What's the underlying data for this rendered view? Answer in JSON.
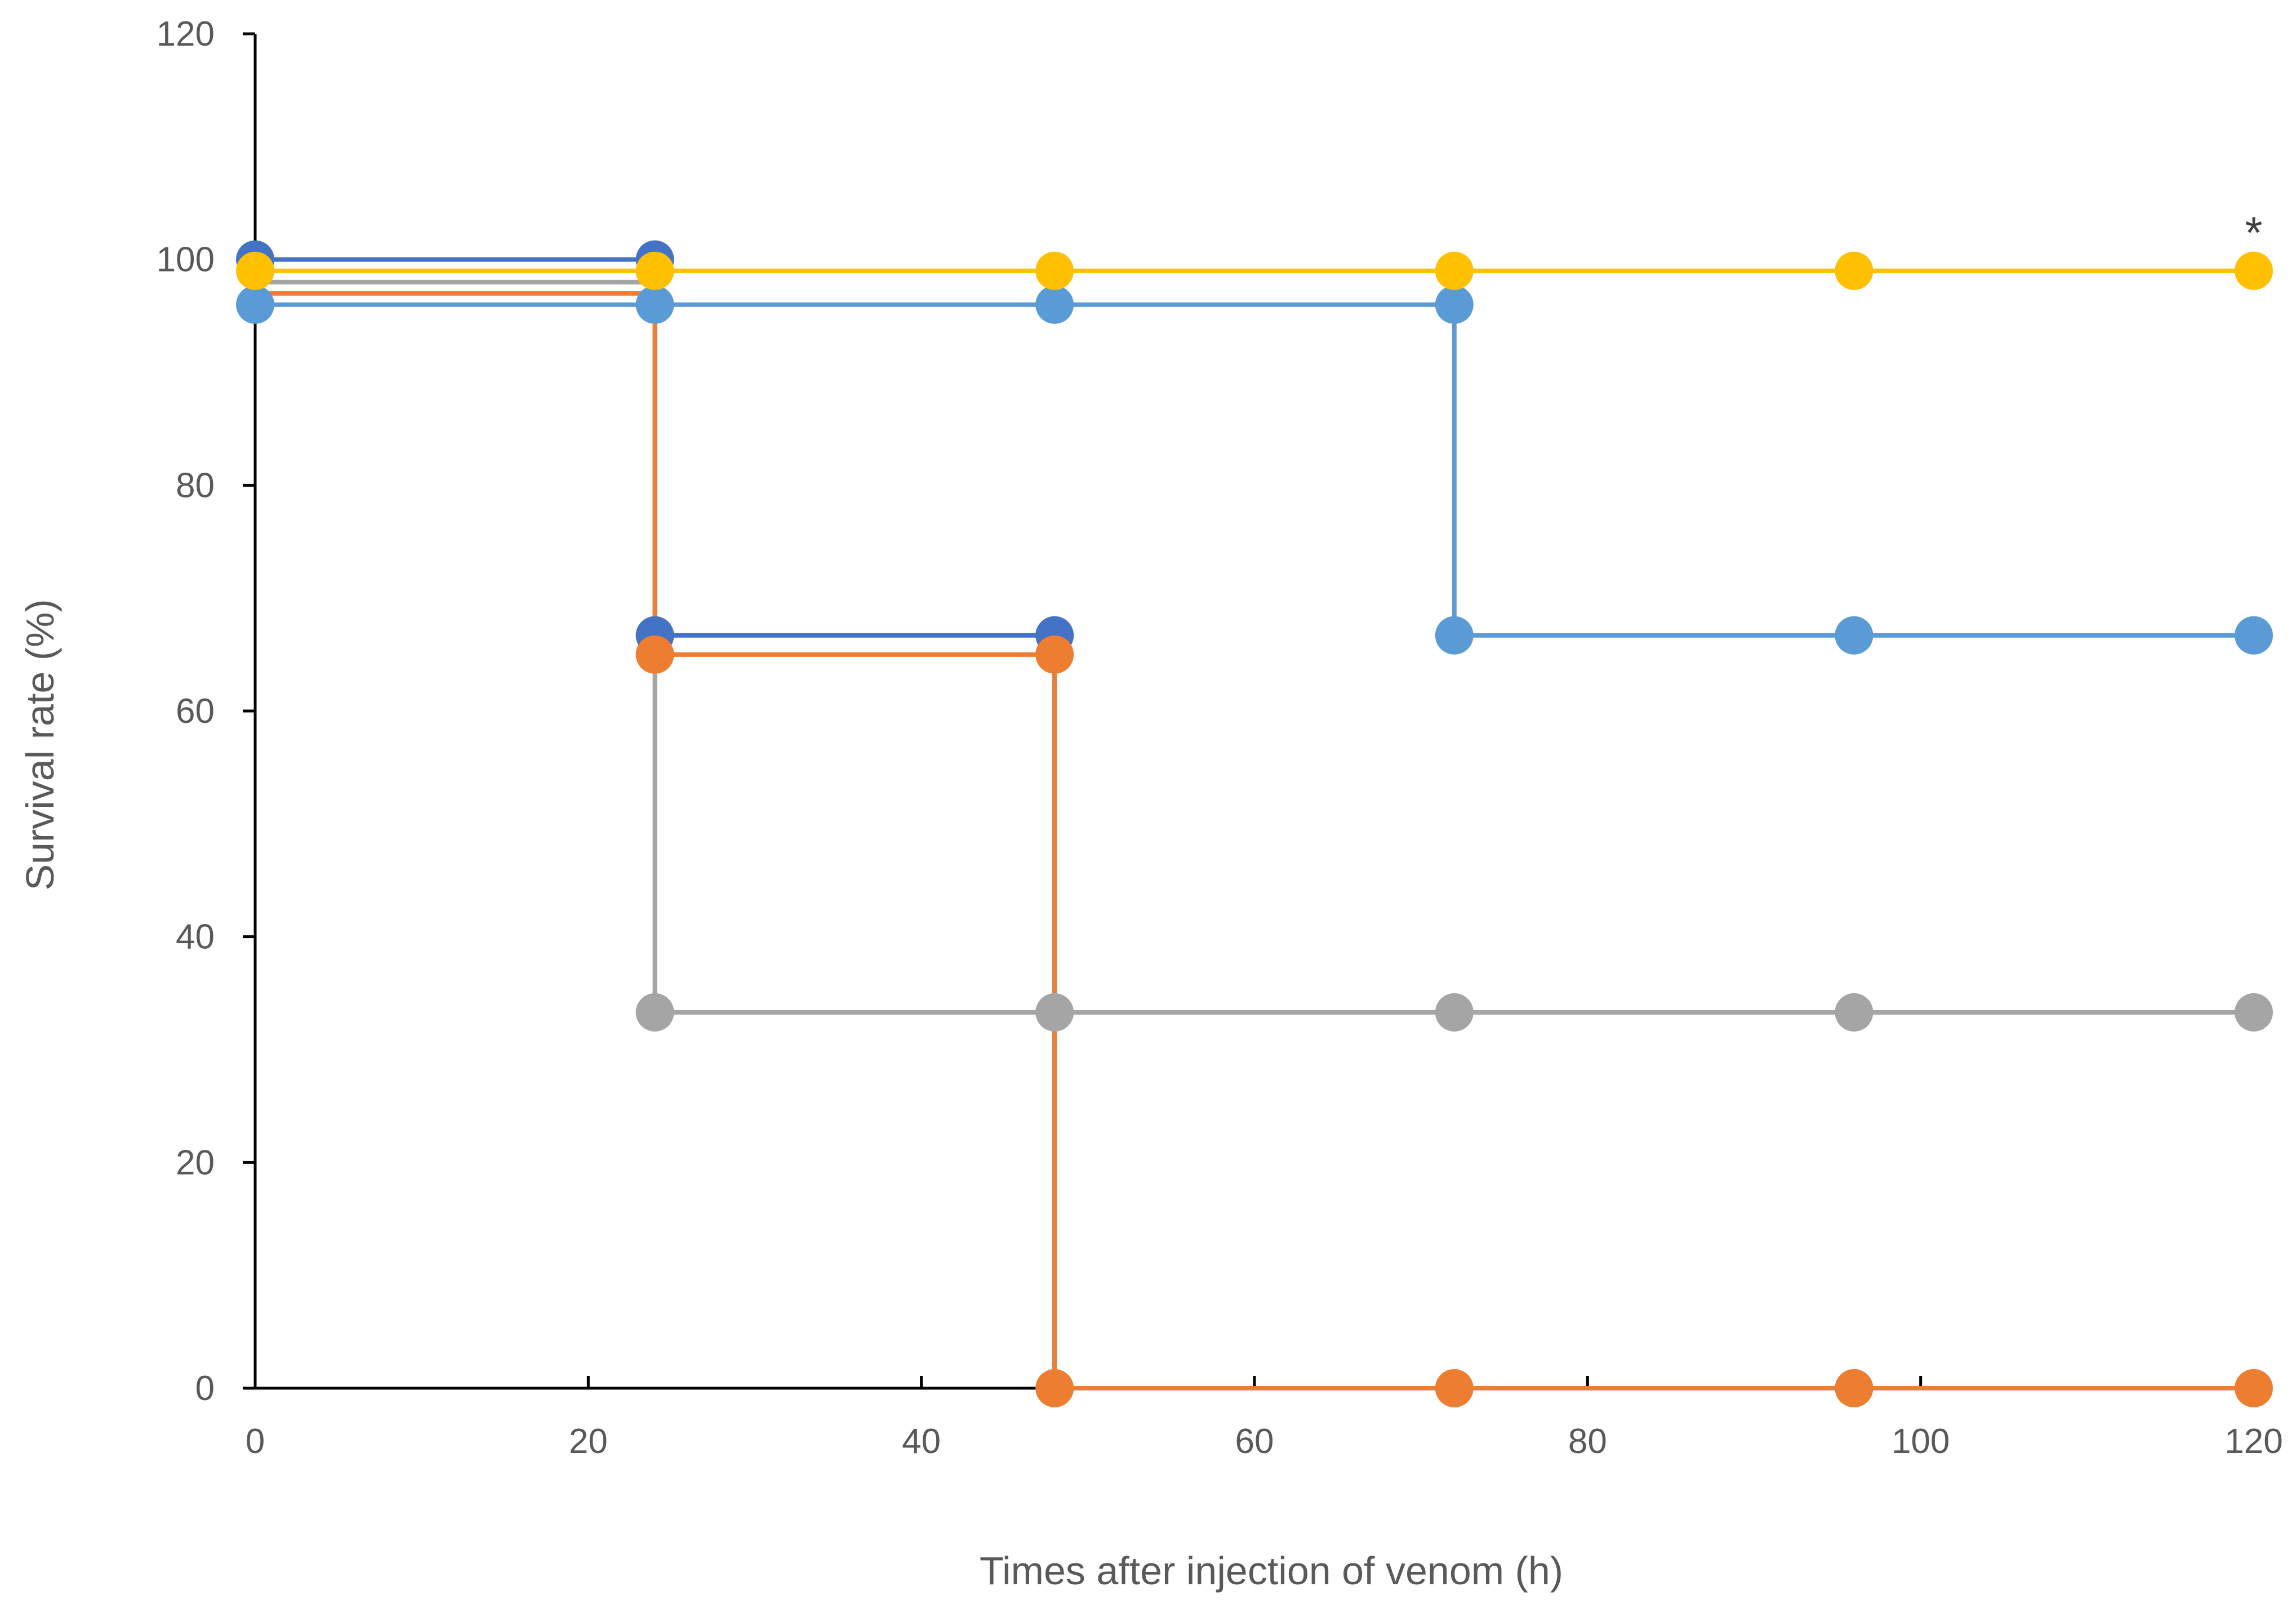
{
  "chart_data": {
    "type": "line",
    "title": "",
    "xlabel": "Times after injection of venom (h)",
    "ylabel": "Survival rate (%)",
    "xlim": [
      0,
      120
    ],
    "ylim": [
      0,
      120
    ],
    "x_ticks": [
      0,
      20,
      40,
      60,
      80,
      100,
      120
    ],
    "y_ticks": [
      0,
      20,
      40,
      60,
      80,
      100,
      120
    ],
    "grid": false,
    "legend": "none",
    "step": true,
    "series": [
      {
        "color": "#4472C4",
        "points": [
          [
            0,
            100
          ],
          [
            24,
            100
          ],
          [
            24,
            66.7
          ],
          [
            48,
            66.7
          ],
          [
            48,
            0
          ]
        ],
        "markers": [
          [
            0,
            100
          ],
          [
            24,
            100
          ],
          [
            24,
            66.7
          ],
          [
            48,
            66.7
          ]
        ]
      },
      {
        "color": "#A5A5A5",
        "points": [
          [
            0,
            98
          ],
          [
            24,
            98
          ],
          [
            24,
            33.3
          ],
          [
            48,
            33.3
          ],
          [
            72,
            33.3
          ],
          [
            96,
            33.3
          ],
          [
            120,
            33.3
          ]
        ],
        "markers": [
          [
            24,
            33.3
          ],
          [
            48,
            33.3
          ],
          [
            72,
            33.3
          ],
          [
            96,
            33.3
          ],
          [
            120,
            33.3
          ]
        ]
      },
      {
        "color": "#ED7D31",
        "points": [
          [
            0,
            97
          ],
          [
            24,
            97
          ],
          [
            24,
            65
          ],
          [
            48,
            65
          ],
          [
            48,
            0
          ],
          [
            72,
            0
          ],
          [
            96,
            0
          ],
          [
            120,
            0
          ]
        ],
        "markers": [
          [
            24,
            65
          ],
          [
            48,
            65
          ],
          [
            48,
            0
          ],
          [
            72,
            0
          ],
          [
            96,
            0
          ],
          [
            120,
            0
          ]
        ]
      },
      {
        "color": "#5B9BD5",
        "points": [
          [
            0,
            96
          ],
          [
            24,
            96
          ],
          [
            48,
            96
          ],
          [
            72,
            96
          ],
          [
            72,
            66.7
          ],
          [
            96,
            66.7
          ],
          [
            120,
            66.7
          ]
        ],
        "markers": [
          [
            0,
            96
          ],
          [
            24,
            96
          ],
          [
            48,
            96
          ],
          [
            72,
            96
          ],
          [
            72,
            66.7
          ],
          [
            96,
            66.7
          ],
          [
            120,
            66.7
          ]
        ]
      },
      {
        "color": "#FFC000",
        "points": [
          [
            0,
            99
          ],
          [
            24,
            99
          ],
          [
            48,
            99
          ],
          [
            72,
            99
          ],
          [
            96,
            99
          ],
          [
            120,
            99
          ]
        ],
        "markers": [
          [
            0,
            99
          ],
          [
            24,
            99
          ],
          [
            48,
            99
          ],
          [
            72,
            99
          ],
          [
            96,
            99
          ],
          [
            120,
            99
          ]
        ]
      }
    ],
    "annotations": [
      {
        "text": "*",
        "x": 120,
        "y": 99
      }
    ]
  }
}
